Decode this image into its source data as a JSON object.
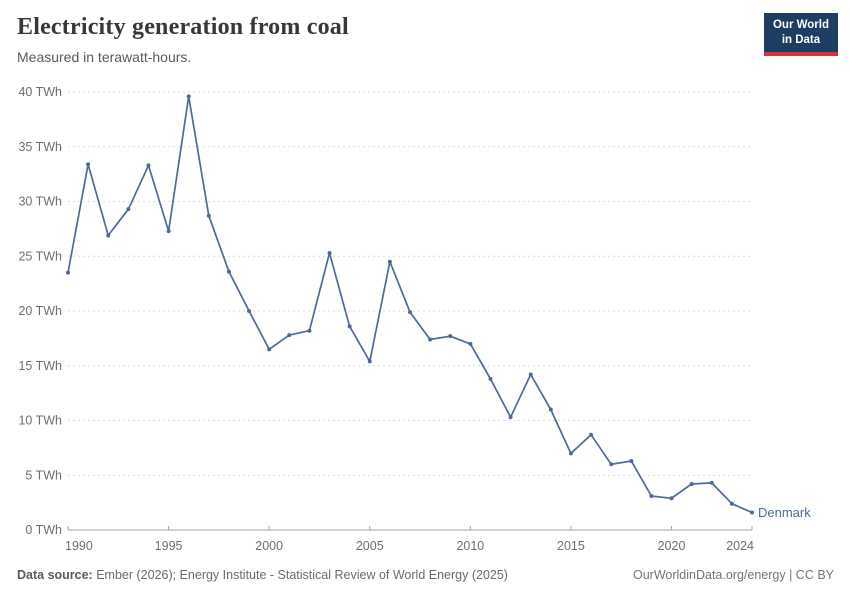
{
  "header": {
    "title": "Electricity generation from coal",
    "subtitle": "Measured in terawatt-hours.",
    "logo_line1": "Our World",
    "logo_line2": "in Data"
  },
  "chart_data": {
    "type": "line",
    "title": "Electricity generation from coal",
    "ylabel": "",
    "xlabel": "",
    "unit": "TWh",
    "grid": "horizontal-dashed",
    "legend_position": "end-of-line-label",
    "xlim": [
      1990,
      2024
    ],
    "ylim": [
      0,
      40
    ],
    "x_ticks": [
      1990,
      1995,
      2000,
      2005,
      2010,
      2015,
      2020,
      2024
    ],
    "y_ticks": [
      0,
      5,
      10,
      15,
      20,
      25,
      30,
      35,
      40
    ],
    "y_tick_suffix": " TWh",
    "x": [
      1990,
      1991,
      1992,
      1993,
      1994,
      1995,
      1996,
      1997,
      1998,
      1999,
      2000,
      2001,
      2002,
      2003,
      2004,
      2005,
      2006,
      2007,
      2008,
      2009,
      2010,
      2011,
      2012,
      2013,
      2014,
      2015,
      2016,
      2017,
      2018,
      2019,
      2020,
      2021,
      2022,
      2023,
      2024
    ],
    "series": [
      {
        "name": "Denmark",
        "color": "#4c6a9c",
        "values": [
          23.5,
          33.4,
          26.9,
          29.3,
          33.3,
          27.3,
          39.6,
          28.7,
          23.6,
          20.0,
          16.5,
          17.8,
          18.2,
          25.3,
          18.6,
          15.4,
          24.5,
          19.9,
          17.4,
          17.7,
          17.0,
          13.8,
          10.3,
          14.2,
          11.0,
          7.0,
          8.7,
          6.0,
          6.3,
          3.1,
          2.9,
          4.2,
          4.3,
          2.4,
          1.6
        ]
      }
    ]
  },
  "footer": {
    "source_label": "Data source:",
    "source_text": " Ember (2026); Energy Institute - Statistical Review of World Energy (2025)",
    "license_text": "OurWorldinData.org/energy | CC BY"
  },
  "colors": {
    "line": "#4c6a9c",
    "grid": "#dcdcdc",
    "axis": "#a5a5a5",
    "tick_label": "#6e6e6e",
    "logo_bg": "#1d3d63",
    "logo_red": "#d8333c"
  }
}
